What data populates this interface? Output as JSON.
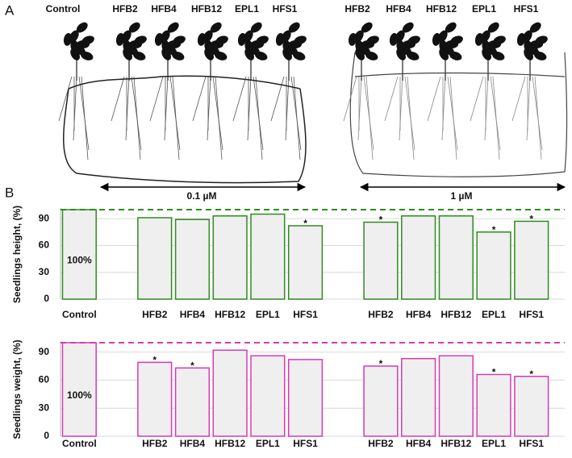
{
  "panel_a": {
    "label": "A",
    "treatments": [
      "Control",
      "HFB2",
      "HFB4",
      "HFB12",
      "EPL1",
      "HFS1",
      "HFB2",
      "HFB4",
      "HFB12",
      "EPL1",
      "HFS1"
    ],
    "concentrations": [
      "0.1 µM",
      "1 µM"
    ]
  },
  "panel_b": {
    "label": "B"
  },
  "chart_data": [
    {
      "type": "bar",
      "ylabel": "Seedlings height, (%)",
      "categories": [
        "Control",
        "HFB2",
        "HFB4",
        "HFB12",
        "EPL1",
        "HFS1",
        "HFB2",
        "HFB4",
        "HFB12",
        "EPL1",
        "HFS1"
      ],
      "values": [
        100,
        91,
        89,
        93,
        95,
        82,
        86,
        93,
        93,
        75,
        87
      ],
      "value_labels": [
        "100%",
        null,
        null,
        null,
        null,
        null,
        null,
        null,
        null,
        null,
        null
      ],
      "annotations": [
        null,
        null,
        null,
        null,
        null,
        "*",
        "*",
        null,
        null,
        "*",
        "*"
      ],
      "color": "#2e8b1e",
      "reference": 100,
      "ylim": [
        0,
        100
      ],
      "yticks": [
        0,
        30,
        60,
        90
      ],
      "grid": true
    },
    {
      "type": "bar",
      "ylabel": "Seedlings weight, (%)",
      "categories": [
        "Control",
        "HFB2",
        "HFB4",
        "HFB12",
        "EPL1",
        "HFS1",
        "HFB2",
        "HFB4",
        "HFB12",
        "EPL1",
        "HFS1"
      ],
      "values": [
        100,
        79,
        73,
        92,
        86,
        82,
        75,
        83,
        86,
        66,
        64
      ],
      "value_labels": [
        "100%",
        null,
        null,
        null,
        null,
        null,
        null,
        null,
        null,
        null,
        null
      ],
      "annotations": [
        null,
        "*",
        "*",
        null,
        null,
        null,
        "*",
        null,
        null,
        "*",
        "*"
      ],
      "color": "#d63ab4",
      "reference": 100,
      "ylim": [
        0,
        100
      ],
      "yticks": [
        0,
        30,
        60,
        90
      ],
      "grid": true
    }
  ]
}
